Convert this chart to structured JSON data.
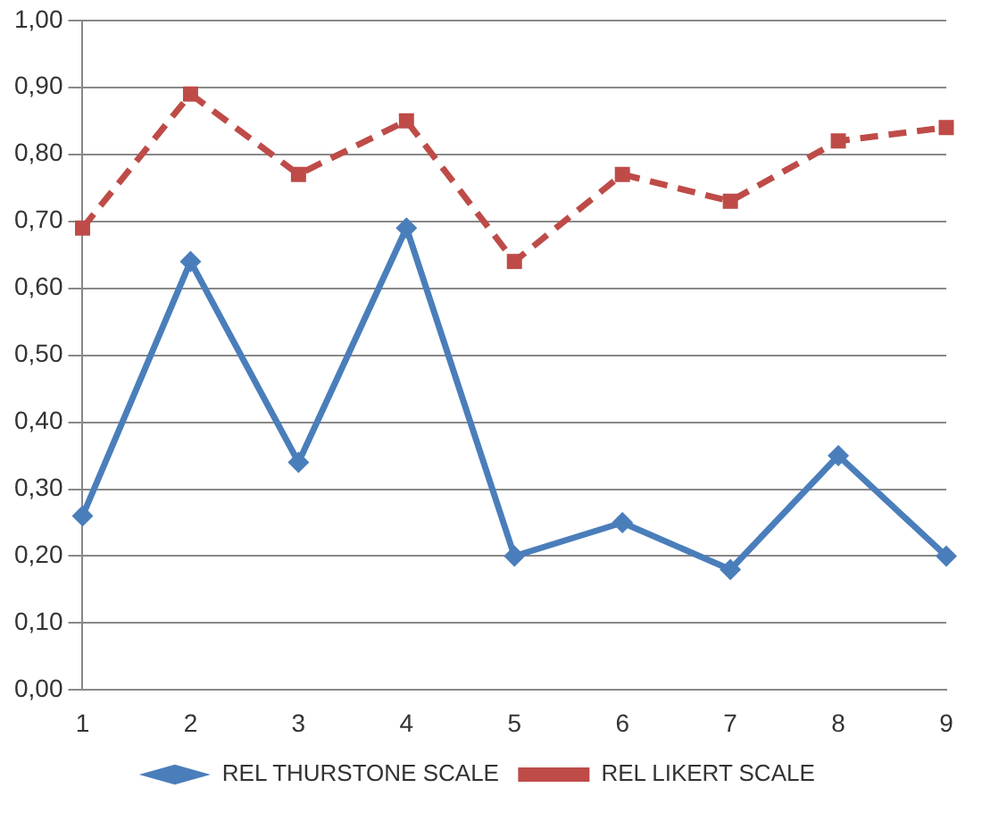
{
  "chart_data": {
    "type": "line",
    "categories": [
      "1",
      "2",
      "3",
      "4",
      "5",
      "6",
      "7",
      "8",
      "9"
    ],
    "series": [
      {
        "name": "REL THURSTONE SCALE",
        "color": "#4a7ebb",
        "values": [
          0.26,
          0.64,
          0.34,
          0.69,
          0.2,
          0.25,
          0.18,
          0.35,
          0.2
        ],
        "marker": "diamond",
        "line_style": "solid"
      },
      {
        "name": "REL LIKERT SCALE",
        "color": "#be4b48",
        "values": [
          0.69,
          0.89,
          0.77,
          0.85,
          0.64,
          0.77,
          0.73,
          0.82,
          0.84
        ],
        "marker": "square",
        "line_style": "dashed"
      }
    ],
    "ylim": [
      0,
      1
    ],
    "yticks": [
      {
        "value": 0,
        "label": "0,00"
      },
      {
        "value": 0.1,
        "label": "0,10"
      },
      {
        "value": 0.2,
        "label": "0,20"
      },
      {
        "value": 0.3,
        "label": "0,30"
      },
      {
        "value": 0.4,
        "label": "0,40"
      },
      {
        "value": 0.5,
        "label": "0,50"
      },
      {
        "value": 0.6,
        "label": "0,60"
      },
      {
        "value": 0.7,
        "label": "0,70"
      },
      {
        "value": 0.8,
        "label": "0,80"
      },
      {
        "value": 0.9,
        "label": "0,90"
      },
      {
        "value": 1,
        "label": "1,00"
      }
    ],
    "grid": "y",
    "legend": "bottom"
  }
}
